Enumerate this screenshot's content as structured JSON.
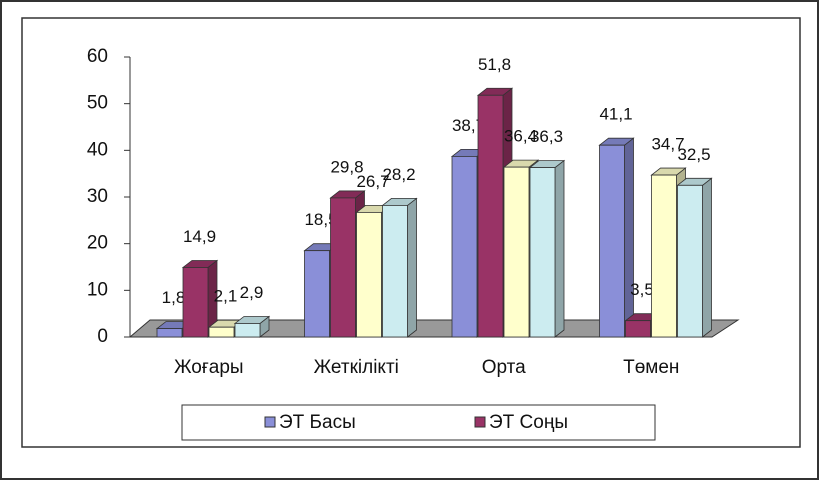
{
  "chart_data": {
    "type": "bar3d",
    "categories": [
      "Жоғары",
      "Жеткілікті",
      "Орта",
      "Төмен"
    ],
    "series": [
      {
        "name": "ЭТ Басы",
        "color": "#8a8fd8",
        "values": [
          1.8,
          18.5,
          38.7,
          41.1
        ],
        "value_labels": [
          "1,8",
          "18,5",
          "38,7",
          "41,1"
        ]
      },
      {
        "name": "ЭТ Соңы",
        "color": "#993366",
        "values": [
          14.9,
          29.8,
          51.8,
          3.5
        ],
        "value_labels": [
          "14,9",
          "29,8",
          "51,8",
          "3,5"
        ]
      },
      {
        "color": "#ffffcc",
        "values": [
          2.1,
          26.7,
          36.4,
          34.7
        ],
        "value_labels": [
          "2,1",
          "26,7",
          "36,4",
          "34,7"
        ]
      },
      {
        "color": "#ccecf0",
        "values": [
          2.9,
          28.2,
          36.3,
          32.5
        ],
        "value_labels": [
          "2,9",
          "28,2",
          "36,3",
          "32,5"
        ]
      }
    ],
    "ylim": [
      0,
      60
    ],
    "yticks": [
      0,
      10,
      20,
      30,
      40,
      50,
      60
    ],
    "legend": "bottom"
  }
}
